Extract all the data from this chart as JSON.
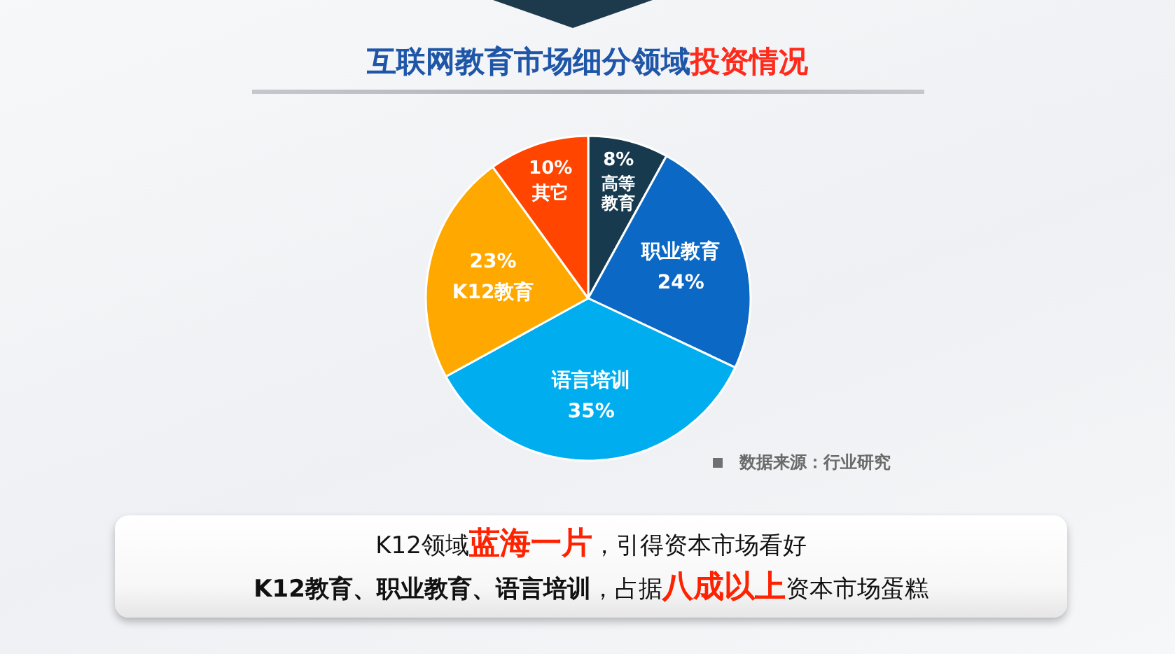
{
  "chart_data": {
    "type": "pie",
    "title": "互联网教育市场细分领域**投资情况**",
    "categories": [
      "高等教育",
      "职业教育",
      "语言培训",
      "K12教育",
      "其它"
    ],
    "values": [
      8,
      24,
      35,
      23,
      10
    ],
    "value_labels": [
      "8%",
      "24%",
      "35%",
      "23%",
      "10%"
    ],
    "colors": [
      "#173a4e",
      "#0b68c4",
      "#00aef0",
      "#ffa800",
      "#ff4500"
    ],
    "annotations": [
      "数据来源：行业研究",
      "K12领域**蓝海一片**，引得资本市场看好",
      "**K12教育、职业教育、语言培训**，占据**八成以上**资本市场蛋糕"
    ]
  }
}
